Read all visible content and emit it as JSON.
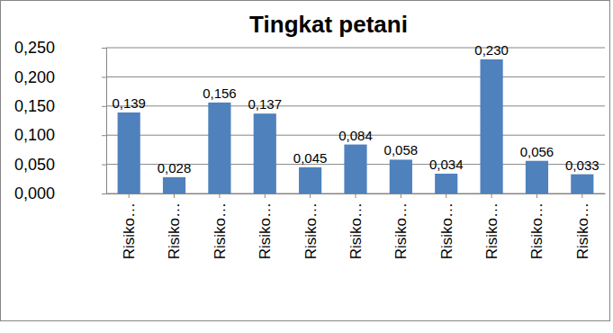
{
  "chart_data": {
    "type": "bar",
    "title": "Tingkat petani",
    "categories": [
      "Risiko…",
      "Risiko…",
      "Risiko…",
      "Risiko…",
      "Risiko…",
      "Risiko…",
      "Risiko…",
      "Risiko…",
      "Risiko…",
      "Risiko…",
      "Risiko…"
    ],
    "values": [
      0.139,
      0.028,
      0.156,
      0.137,
      0.045,
      0.084,
      0.058,
      0.034,
      0.23,
      0.056,
      0.033
    ],
    "value_labels": [
      "0,139",
      "0,028",
      "0,156",
      "0,137",
      "0,045",
      "0,084",
      "0,058",
      "0,034",
      "0,230",
      "0,056",
      "0,033"
    ],
    "color": "#4f81bd",
    "ylim": [
      0,
      0.25
    ],
    "yticks": [
      {
        "value": 0,
        "label": "0,000"
      },
      {
        "value": 0.05,
        "label": "0,050"
      },
      {
        "value": 0.1,
        "label": "0,100"
      },
      {
        "value": 0.15,
        "label": "0,150"
      },
      {
        "value": 0.2,
        "label": "0,200"
      },
      {
        "value": 0.25,
        "label": "0,250"
      }
    ],
    "grid": true,
    "data_labels": true
  }
}
